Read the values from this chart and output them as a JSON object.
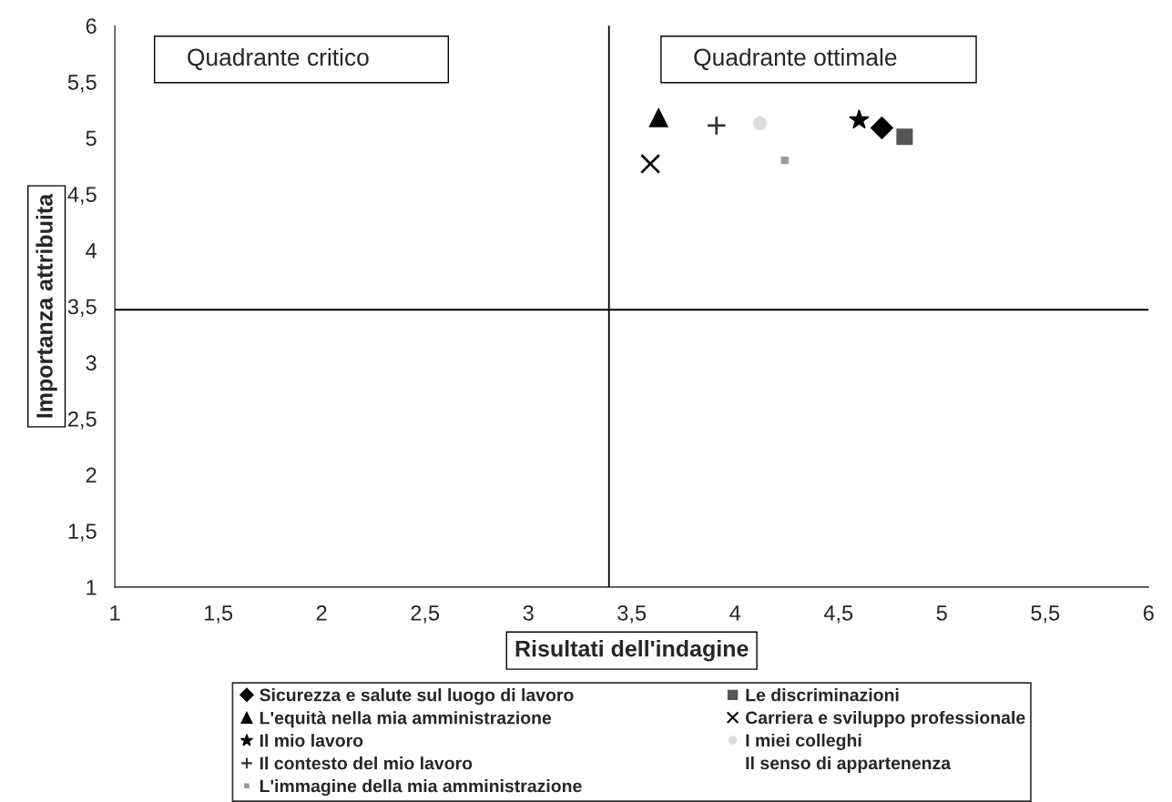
{
  "chart_data": {
    "type": "scatter",
    "xlabel": "Risultati dell'indagine",
    "ylabel": "Importanza attribuita",
    "xlim": [
      1,
      6
    ],
    "ylim": [
      1,
      6
    ],
    "xticks": [
      1,
      {
        "value": 1.5,
        "label": "1,5"
      },
      2,
      {
        "value": 2.5,
        "label": "2,5"
      },
      3,
      {
        "value": 3.5,
        "label": "3,5"
      },
      4,
      {
        "value": 4.5,
        "label": "4,5"
      },
      5,
      {
        "value": 5.5,
        "label": "5,5"
      },
      6
    ],
    "yticks": [
      1,
      {
        "value": 1.5,
        "label": "1,5"
      },
      2,
      {
        "value": 2.5,
        "label": "2,5"
      },
      3,
      {
        "value": 3.5,
        "label": "3,5"
      },
      4,
      {
        "value": 4.5,
        "label": "4,5"
      },
      5,
      {
        "value": 5.5,
        "label": "5,5"
      },
      6
    ],
    "annotations": [
      "Quadrante critico",
      "Quadrante ottimale"
    ],
    "ref_lines": [
      {
        "axis": "x",
        "value": 3.39,
        "color": "#000000"
      },
      {
        "axis": "y",
        "value": 3.47,
        "color": "#000000"
      }
    ],
    "grid": false,
    "legend": "bottom",
    "series": [
      {
        "name": "Sicurezza e salute sul luogo di lavoro",
        "color": "#000000",
        "marker": "diamond",
        "x": [
          4.71
        ],
        "values": [
          5.09
        ]
      },
      {
        "name": "L'equità nella mia amministrazione",
        "color": "#000000",
        "marker": "triangle",
        "x": [
          3.63
        ],
        "values": [
          5.18
        ]
      },
      {
        "name": "Il mio lavoro",
        "color": "#000000",
        "marker": "star",
        "x": [
          4.6
        ],
        "values": [
          5.16
        ]
      },
      {
        "name": "Il contesto del mio lavoro",
        "color": "#333333",
        "marker": "plus",
        "x": [
          3.91
        ],
        "values": [
          5.11
        ]
      },
      {
        "name": "L'immagine della mia amministrazione",
        "color": "#999999",
        "marker": "square",
        "x": [
          4.24
        ],
        "values": [
          4.8
        ]
      },
      {
        "name": "Le discriminazioni",
        "color": "#555555",
        "marker": "square",
        "x": [
          4.82
        ],
        "values": [
          5.01
        ]
      },
      {
        "name": "Carriera e sviluppo professionale",
        "color": "#000000",
        "marker": "cross",
        "x": [
          3.59
        ],
        "values": [
          4.77
        ]
      },
      {
        "name": "I miei colleghi",
        "color": "#dddddd",
        "marker": "circle",
        "x": [
          4.12
        ],
        "values": [
          5.13
        ]
      },
      {
        "name": "Il senso di appartenenza",
        "marker": "none",
        "x": [
          null
        ],
        "values": [
          null
        ]
      }
    ]
  }
}
